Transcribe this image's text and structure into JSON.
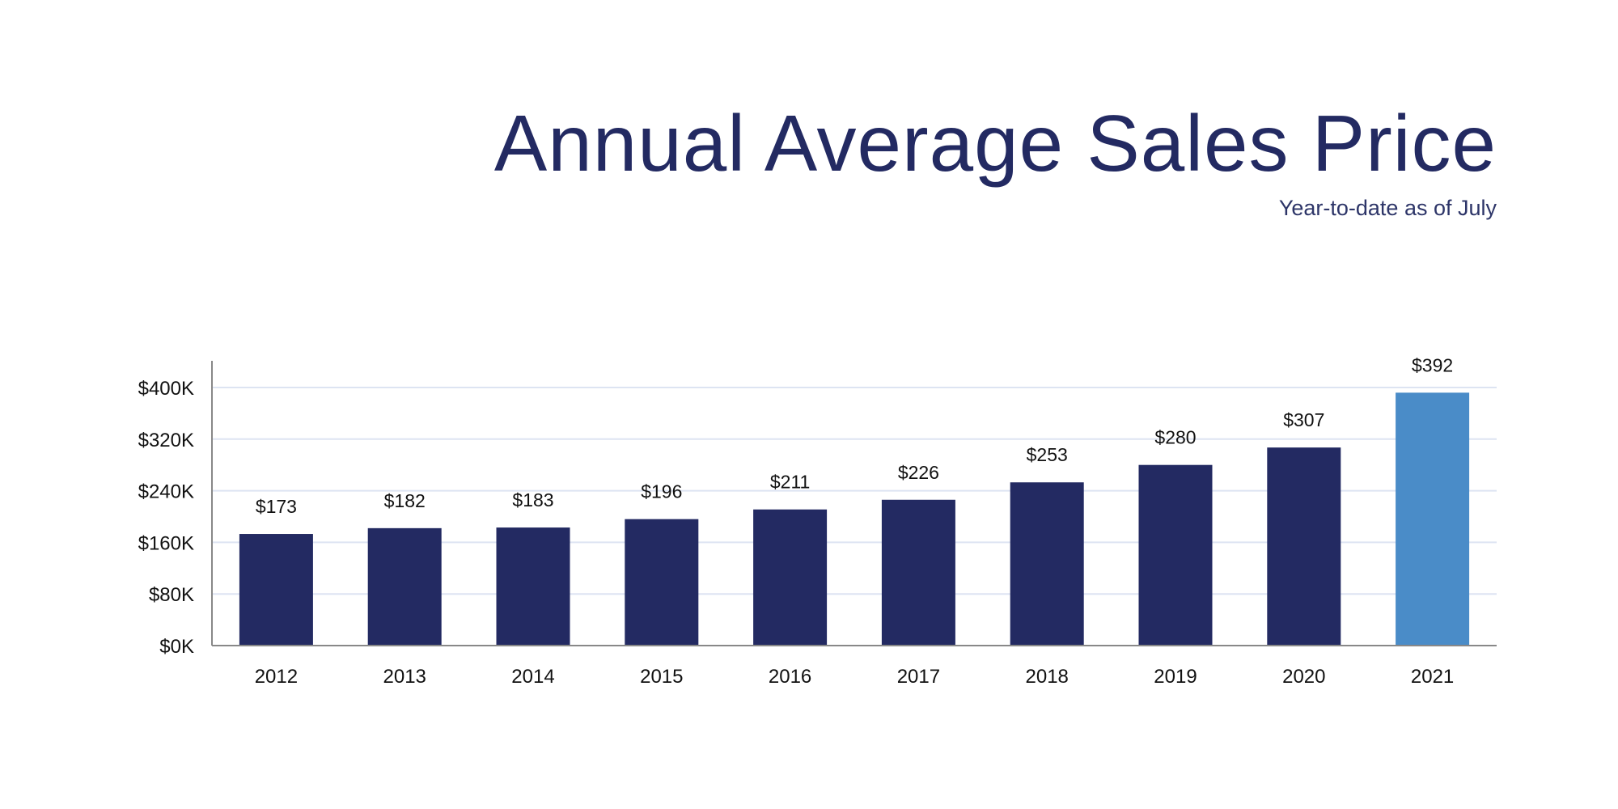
{
  "chart_data": {
    "type": "bar",
    "title": "Annual Average Sales Price",
    "subtitle": "Year-to-date as of July",
    "xlabel": "",
    "ylabel": "",
    "categories": [
      "2012",
      "2013",
      "2014",
      "2015",
      "2016",
      "2017",
      "2018",
      "2019",
      "2020",
      "2021"
    ],
    "values": [
      173,
      182,
      183,
      196,
      211,
      226,
      253,
      280,
      307,
      392
    ],
    "data_labels": [
      "$173",
      "$182",
      "$183",
      "$196",
      "$211",
      "$226",
      "$253",
      "$280",
      "$307",
      "$392"
    ],
    "value_unit": "thousands USD",
    "ylim": [
      0,
      400
    ],
    "yticks": [
      0,
      80,
      160,
      240,
      320,
      400
    ],
    "ytick_labels": [
      "$0K",
      "$80K",
      "$160K",
      "$240K",
      "$320K",
      "$400K"
    ],
    "grid": true,
    "legend": "none",
    "colors": {
      "bar": "#232a62",
      "highlight_bar": "#4a8cc8",
      "highlight_category": "2021",
      "grid": "#dde4f2",
      "axis": "#888888"
    }
  }
}
